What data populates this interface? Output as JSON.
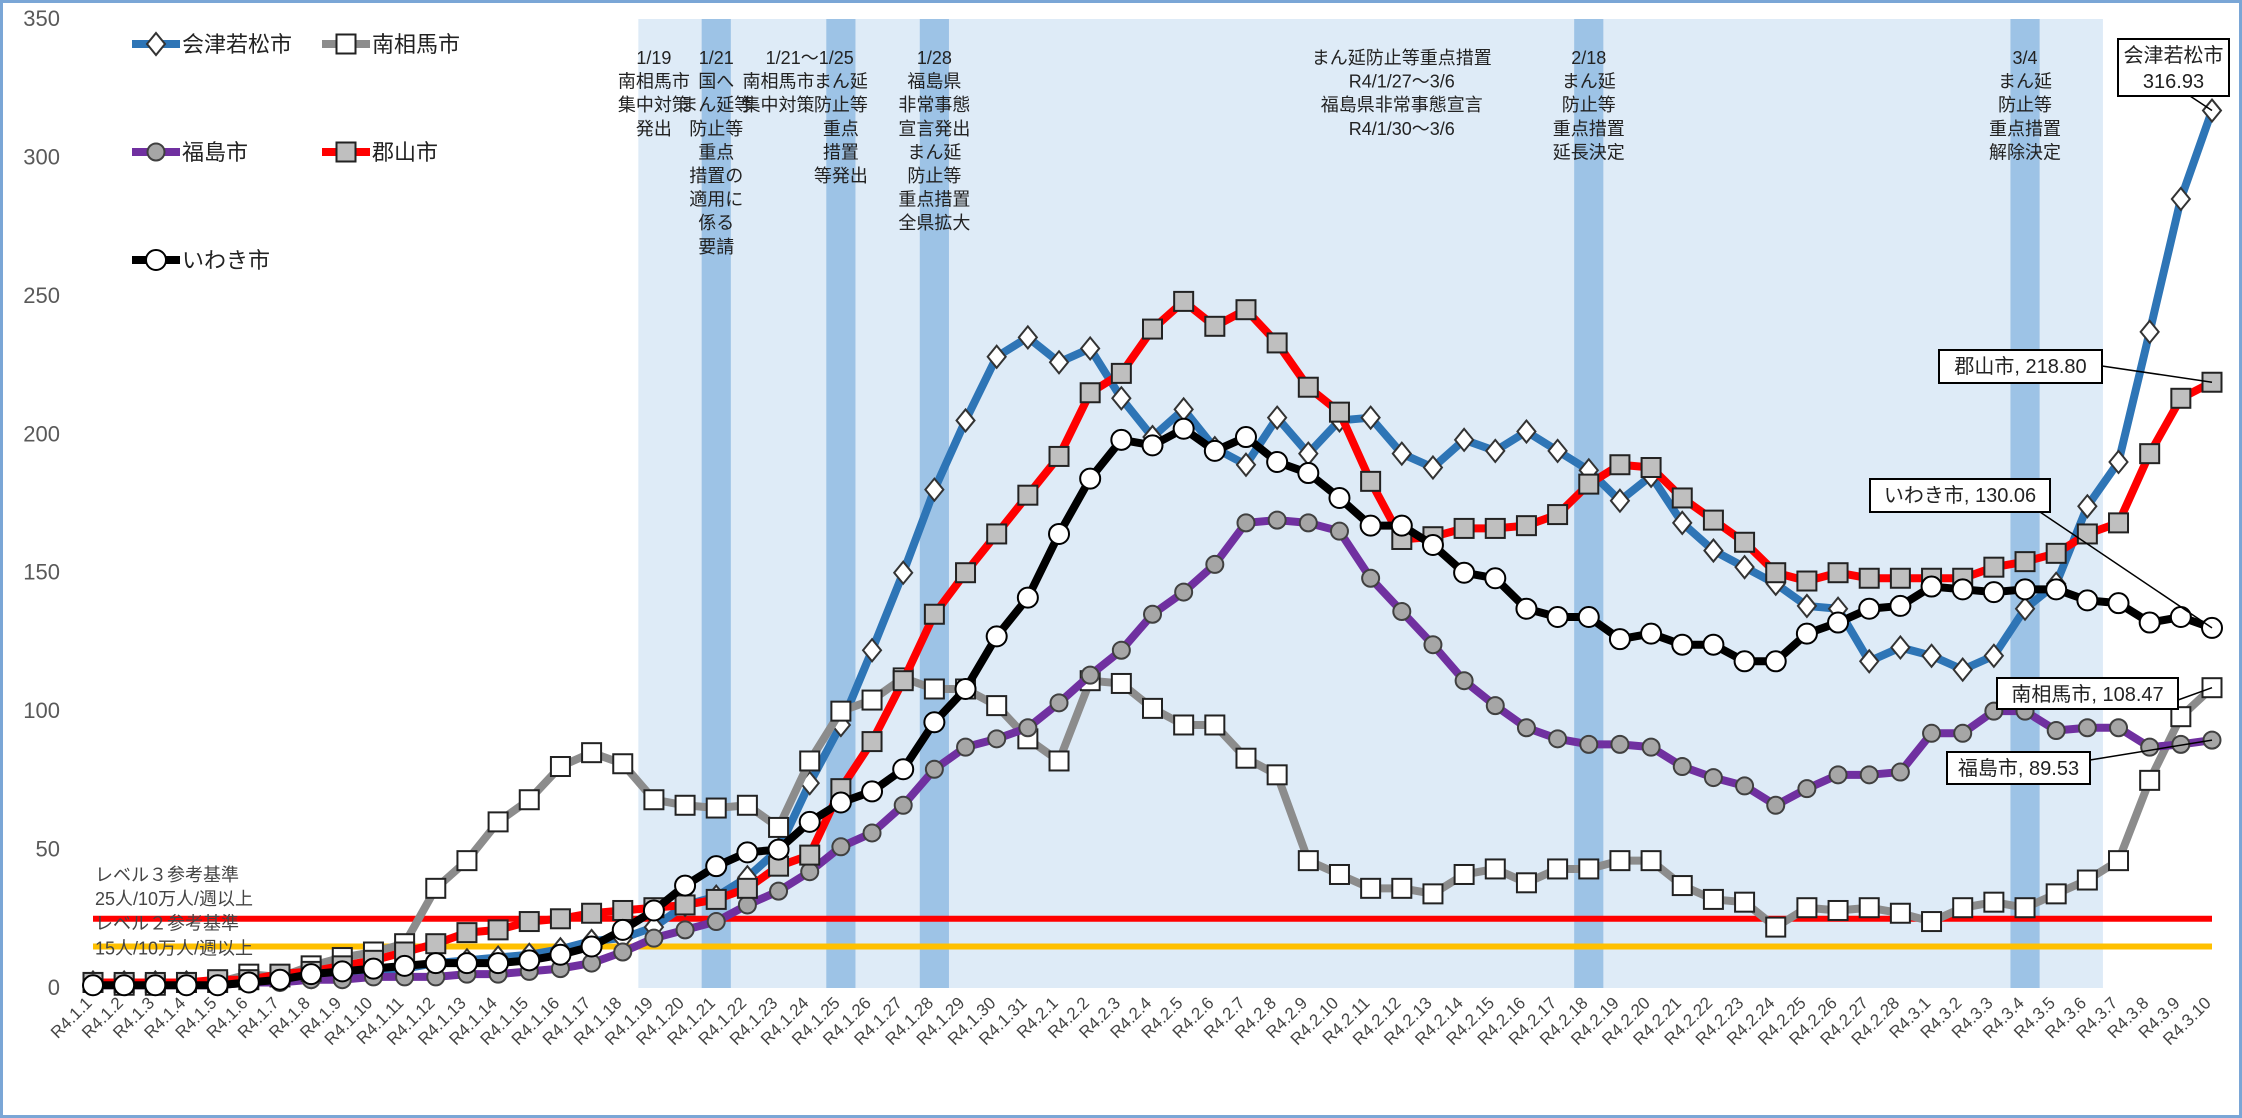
{
  "chart_data": {
    "type": "line",
    "categories": [
      "R4.1.1",
      "R4.1.2",
      "R4.1.3",
      "R4.1.4",
      "R4.1.5",
      "R4.1.6",
      "R4.1.7",
      "R4.1.8",
      "R4.1.9",
      "R4.1.10",
      "R4.1.11",
      "R4.1.12",
      "R4.1.13",
      "R4.1.14",
      "R4.1.15",
      "R4.1.16",
      "R4.1.17",
      "R4.1.18",
      "R4.1.19",
      "R4.1.20",
      "R4.1.21",
      "R4.1.22",
      "R4.1.23",
      "R4.1.24",
      "R4.1.25",
      "R4.1.26",
      "R4.1.27",
      "R4.1.28",
      "R4.1.29",
      "R4.1.30",
      "R4.1.31",
      "R4.2.1",
      "R4.2.2",
      "R4.2.3",
      "R4.2.4",
      "R4.2.5",
      "R4.2.6",
      "R4.2.7",
      "R4.2.8",
      "R4.2.9",
      "R4.2.10",
      "R4.2.11",
      "R4.2.12",
      "R4.2.13",
      "R4.2.14",
      "R4.2.15",
      "R4.2.16",
      "R4.2.17",
      "R4.2.18",
      "R4.2.19",
      "R4.2.20",
      "R4.2.21",
      "R4.2.22",
      "R4.2.23",
      "R4.2.24",
      "R4.2.25",
      "R4.2.26",
      "R4.2.27",
      "R4.2.28",
      "R4.3.1",
      "R4.3.2",
      "R4.3.3",
      "R4.3.4",
      "R4.3.5",
      "R4.3.6",
      "R4.3.7",
      "R4.3.8",
      "R4.3.9",
      "R4.3.10"
    ],
    "series": [
      {
        "name": "会津若松市",
        "color": "#2e75b6",
        "marker": "diamond",
        "marker_fill": "#ffffff",
        "marker_stroke": "#333333",
        "end_label": [
          "会津若松市",
          "316.93"
        ],
        "values": [
          2,
          2,
          2,
          2,
          2,
          3,
          3,
          4,
          5,
          6,
          7,
          9,
          10,
          11,
          12,
          14,
          17,
          18,
          22,
          30,
          33,
          40,
          50,
          74,
          95,
          122,
          150,
          180,
          205,
          228,
          235,
          226,
          231,
          213,
          199,
          209,
          195,
          189,
          206,
          193,
          205,
          206,
          193,
          188,
          198,
          194,
          201,
          194,
          187,
          176,
          185,
          168,
          158,
          152,
          146,
          138,
          137,
          118,
          123,
          120,
          115,
          120,
          137,
          146,
          174,
          190,
          237,
          285,
          316.93
        ]
      },
      {
        "name": "南相馬市",
        "color": "#8c8c8c",
        "marker": "square",
        "marker_fill": "#ffffff",
        "marker_stroke": "#222222",
        "end_label": [
          "南相馬市, 108.47"
        ],
        "values": [
          2,
          1,
          1,
          2,
          2,
          5,
          4,
          8,
          11,
          13,
          16,
          36,
          46,
          60,
          68,
          80,
          85,
          81,
          68,
          66,
          65,
          66,
          58,
          82,
          100,
          104,
          112,
          108,
          108,
          102,
          90,
          82,
          111,
          110,
          101,
          95,
          95,
          83,
          77,
          46,
          41,
          36,
          36,
          34,
          41,
          43,
          38,
          43,
          43,
          46,
          46,
          37,
          32,
          31,
          22,
          29,
          28,
          29,
          27,
          24,
          29,
          31,
          29,
          34,
          39,
          46,
          75,
          98,
          108.47
        ]
      },
      {
        "name": "福島市",
        "color": "#7030a0",
        "marker": "circle",
        "marker_fill": "#a6a6a6",
        "marker_stroke": "#404040",
        "end_label": [
          "福島市, 89.53"
        ],
        "values": [
          1,
          1,
          1,
          1,
          1,
          2,
          2,
          3,
          3,
          4,
          4,
          4,
          5,
          5,
          6,
          7,
          9,
          13,
          18,
          21,
          24,
          30,
          35,
          42,
          51,
          56,
          66,
          79,
          87,
          90,
          94,
          103,
          113,
          122,
          135,
          143,
          153,
          168,
          169,
          168,
          165,
          148,
          136,
          124,
          111,
          102,
          94,
          90,
          88,
          88,
          87,
          80,
          76,
          73,
          66,
          72,
          77,
          77,
          78,
          92,
          92,
          100,
          100,
          93,
          94,
          94,
          87,
          88,
          89.53
        ]
      },
      {
        "name": "郡山市",
        "color": "#ff0000",
        "marker": "square",
        "marker_fill": "#bfbfbf",
        "marker_stroke": "#222222",
        "end_label": [
          "郡山市, 218.80"
        ],
        "values": [
          2,
          2,
          2,
          2,
          3,
          3,
          5,
          6,
          8,
          10,
          13,
          16,
          20,
          21,
          24,
          25,
          27,
          28,
          29,
          30,
          32,
          36,
          44,
          48,
          72,
          89,
          111,
          135,
          150,
          164,
          178,
          192,
          215,
          222,
          238,
          248,
          239,
          245,
          233,
          217,
          208,
          183,
          162,
          163,
          166,
          166,
          167,
          171,
          182,
          189,
          188,
          177,
          169,
          161,
          150,
          147,
          150,
          148,
          148,
          148,
          148,
          152,
          154,
          157,
          164,
          168,
          193,
          213,
          218.8
        ]
      },
      {
        "name": "いわき市",
        "color": "#000000",
        "marker": "circle",
        "marker_fill": "#ffffff",
        "marker_stroke": "#000000",
        "end_label": [
          "いわき市, 130.06"
        ],
        "values": [
          1,
          1,
          1,
          1,
          1,
          2,
          3,
          5,
          6,
          7,
          8,
          9,
          9,
          9,
          10,
          12,
          15,
          21,
          28,
          37,
          44,
          49,
          50,
          60,
          67,
          71,
          79,
          96,
          108,
          127,
          141,
          164,
          184,
          198,
          196,
          202,
          194,
          199,
          190,
          186,
          177,
          167,
          167,
          160,
          150,
          148,
          137,
          134,
          134,
          126,
          128,
          124,
          124,
          118,
          118,
          128,
          132,
          137,
          138,
          145,
          144,
          143,
          144,
          144,
          140,
          139,
          132,
          134,
          130.06
        ]
      }
    ],
    "ylim": [
      0,
      350
    ],
    "yticks": [
      0,
      50,
      100,
      150,
      200,
      250,
      300,
      350
    ],
    "grid": false,
    "period": {
      "from": "R4.1.19",
      "to": "R4.3.6",
      "color": "#deebf7"
    },
    "bands": {
      "color": "#9dc3e6",
      "at": [
        "R4.1.21",
        "R4.1.25",
        "R4.1.28",
        "R4.2.18",
        "R4.3.4"
      ]
    },
    "reference_lines": [
      {
        "value": 25,
        "color": "#ff0000",
        "label": [
          "レベル３参考基準",
          "25人/10万人/週以上"
        ]
      },
      {
        "value": 15,
        "color": "#ffc000",
        "label": [
          "レベル２参考基準",
          "15人/10万人/週以上"
        ]
      }
    ],
    "annotations": [
      {
        "at": "R4.1.19",
        "lines": [
          "1/19",
          "南相馬市",
          "集中対策",
          "発出"
        ]
      },
      {
        "at": "R4.1.21",
        "lines": [
          "1/21",
          "国へ",
          "まん延等",
          "防止等",
          "重点",
          "措置の",
          "適用に",
          "係る",
          "要請"
        ]
      },
      {
        "at": "R4.1.24",
        "lines": [
          "1/21～1/25"
        ]
      },
      {
        "at": "R4.1.23",
        "lines": [
          "南相馬市",
          "集中対策"
        ]
      },
      {
        "at": "R4.1.25",
        "lines": [
          "まん延",
          "防止等",
          "重点",
          "措置",
          "等発出"
        ]
      },
      {
        "at": "R4.1.28",
        "lines": [
          "1/28",
          "福島県",
          "非常事態",
          "宣言発出",
          "まん延",
          "防止等",
          "重点措置",
          "全県拡大"
        ]
      },
      {
        "at": "R4.2.12",
        "lines": [
          "まん延防止等重点措置",
          "R4/1/27～3/6",
          "福島県非常事態宣言",
          "R4/1/30～3/6"
        ]
      },
      {
        "at": "R4.2.18",
        "lines": [
          "2/18",
          "まん延",
          "防止等",
          "重点措置",
          "延長決定"
        ]
      },
      {
        "at": "R4.3.4",
        "lines": [
          "3/4",
          "まん延",
          "防止等",
          "重点措置",
          "解除決定"
        ]
      }
    ]
  }
}
